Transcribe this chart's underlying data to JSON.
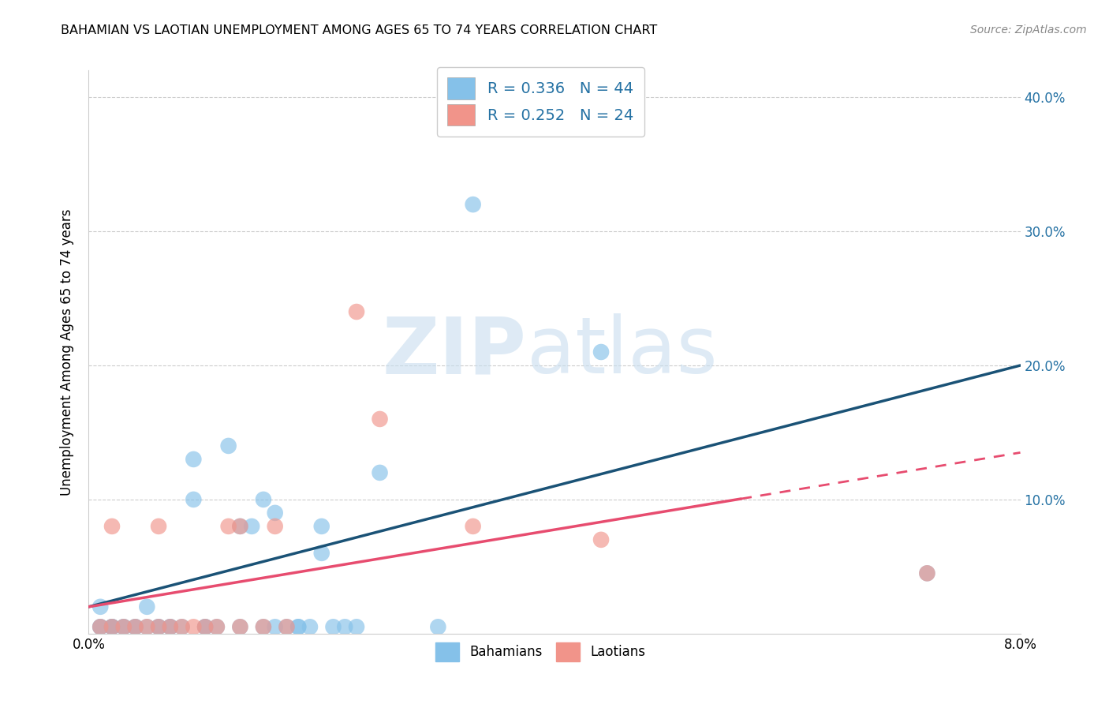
{
  "title": "BAHAMIAN VS LAOTIAN UNEMPLOYMENT AMONG AGES 65 TO 74 YEARS CORRELATION CHART",
  "source": "Source: ZipAtlas.com",
  "ylabel": "Unemployment Among Ages 65 to 74 years",
  "xlim": [
    0.0,
    0.08
  ],
  "ylim": [
    0.0,
    0.42
  ],
  "x_tick_positions": [
    0.0,
    0.02,
    0.04,
    0.06,
    0.08
  ],
  "x_tick_labels": [
    "0.0%",
    "",
    "",
    "",
    "8.0%"
  ],
  "y_tick_positions": [
    0.0,
    0.1,
    0.2,
    0.3,
    0.4
  ],
  "y_tick_labels_right": [
    "",
    "10.0%",
    "20.0%",
    "30.0%",
    "40.0%"
  ],
  "bahamian_color": "#85C1E9",
  "laotian_color": "#F1948A",
  "bahamian_line_color": "#1A5276",
  "laotian_line_color": "#E74C6F",
  "grid_color": "#CCCCCC",
  "R_bahamian": 0.336,
  "N_bahamian": 44,
  "R_laotian": 0.252,
  "N_laotian": 24,
  "bahamian_x": [
    0.001,
    0.001,
    0.001,
    0.002,
    0.002,
    0.002,
    0.003,
    0.003,
    0.004,
    0.004,
    0.005,
    0.005,
    0.006,
    0.006,
    0.007,
    0.007,
    0.008,
    0.009,
    0.009,
    0.01,
    0.01,
    0.011,
    0.012,
    0.013,
    0.013,
    0.014,
    0.015,
    0.015,
    0.016,
    0.016,
    0.017,
    0.018,
    0.018,
    0.019,
    0.02,
    0.02,
    0.021,
    0.022,
    0.023,
    0.025,
    0.03,
    0.033,
    0.044,
    0.072
  ],
  "bahamian_y": [
    0.02,
    0.005,
    0.005,
    0.005,
    0.005,
    0.005,
    0.005,
    0.005,
    0.005,
    0.005,
    0.02,
    0.005,
    0.005,
    0.005,
    0.005,
    0.005,
    0.005,
    0.1,
    0.13,
    0.005,
    0.005,
    0.005,
    0.14,
    0.005,
    0.08,
    0.08,
    0.1,
    0.005,
    0.09,
    0.005,
    0.005,
    0.005,
    0.005,
    0.005,
    0.08,
    0.06,
    0.005,
    0.005,
    0.005,
    0.12,
    0.005,
    0.32,
    0.21,
    0.045
  ],
  "laotian_x": [
    0.001,
    0.002,
    0.002,
    0.003,
    0.004,
    0.005,
    0.006,
    0.006,
    0.007,
    0.008,
    0.009,
    0.01,
    0.011,
    0.012,
    0.013,
    0.013,
    0.015,
    0.016,
    0.017,
    0.023,
    0.025,
    0.033,
    0.044,
    0.072
  ],
  "laotian_y": [
    0.005,
    0.005,
    0.08,
    0.005,
    0.005,
    0.005,
    0.08,
    0.005,
    0.005,
    0.005,
    0.005,
    0.005,
    0.005,
    0.08,
    0.005,
    0.08,
    0.005,
    0.08,
    0.005,
    0.24,
    0.16,
    0.08,
    0.07,
    0.045
  ],
  "watermark_text": "ZIPatlas",
  "watermark_color": "#D6EAF8",
  "figsize": [
    14.06,
    8.92
  ],
  "dpi": 100
}
